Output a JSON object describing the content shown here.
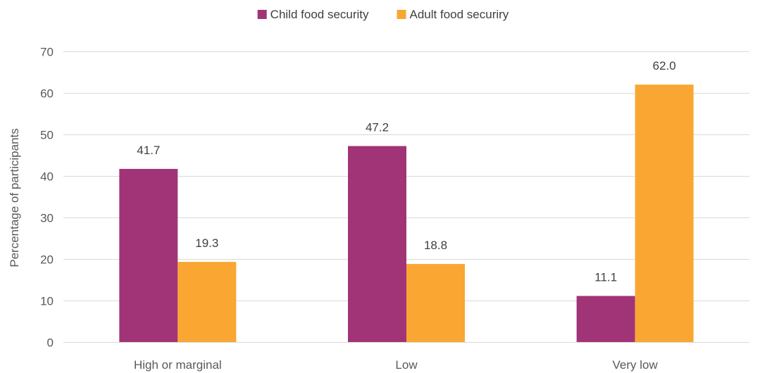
{
  "chart_data": {
    "type": "bar",
    "title": "",
    "xlabel": "",
    "ylabel": "Percentage of participants",
    "ylim": [
      0,
      70
    ],
    "yticks": [
      0,
      10,
      20,
      30,
      40,
      50,
      60,
      70
    ],
    "grid": true,
    "legend_position": "top",
    "categories": [
      "High or marginal",
      "Low",
      "Very low"
    ],
    "series": [
      {
        "name": "Child food security",
        "color": "#a13477",
        "values": [
          41.7,
          47.2,
          11.1
        ],
        "labels": [
          "41.7",
          "47.2",
          "11.1"
        ]
      },
      {
        "name": "Adult food securiry",
        "color": "#f9a633",
        "values": [
          19.3,
          18.8,
          62.0
        ],
        "labels": [
          "19.3",
          "18.8",
          "62.0"
        ]
      }
    ]
  }
}
